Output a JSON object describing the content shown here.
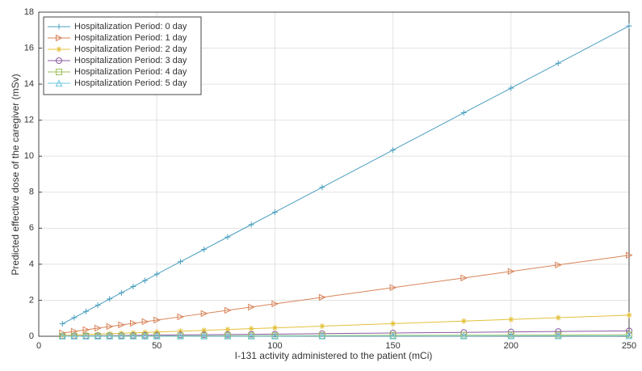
{
  "chart_data": {
    "type": "line",
    "xlabel": "I-131 activity administered to the patient (mCi)",
    "ylabel": "Predicted effective dose of the caregiver (mSv)",
    "x": [
      10,
      15,
      20,
      25,
      30,
      35,
      40,
      45,
      50,
      60,
      70,
      80,
      90,
      100,
      120,
      150,
      180,
      200,
      220,
      250
    ],
    "series": [
      {
        "name": "Hospitalization Period: 0 day",
        "color": "#4a9fbf",
        "marker": "plus",
        "values": [
          0.69,
          1.03,
          1.38,
          1.72,
          2.07,
          2.41,
          2.76,
          3.1,
          3.45,
          4.14,
          4.82,
          5.51,
          6.2,
          6.89,
          8.27,
          10.34,
          12.41,
          13.78,
          15.16,
          17.23
        ]
      },
      {
        "name": "Hospitalization Period: 1 day",
        "color": "#d9845a",
        "marker": "triangle-right",
        "values": [
          0.18,
          0.27,
          0.36,
          0.45,
          0.54,
          0.63,
          0.72,
          0.81,
          0.9,
          1.08,
          1.26,
          1.44,
          1.62,
          1.8,
          2.16,
          2.7,
          3.24,
          3.6,
          3.96,
          4.5
        ]
      },
      {
        "name": "Hospitalization Period: 2 day",
        "color": "#e3c03a",
        "marker": "star",
        "values": [
          0.047,
          0.07,
          0.094,
          0.117,
          0.14,
          0.164,
          0.187,
          0.211,
          0.234,
          0.281,
          0.328,
          0.374,
          0.421,
          0.468,
          0.562,
          0.702,
          0.842,
          0.936,
          1.03,
          1.17
        ]
      },
      {
        "name": "Hospitalization Period: 3 day",
        "color": "#8a5aa0",
        "marker": "circle",
        "values": [
          0.012,
          0.018,
          0.024,
          0.03,
          0.036,
          0.042,
          0.048,
          0.054,
          0.06,
          0.072,
          0.084,
          0.096,
          0.108,
          0.12,
          0.144,
          0.18,
          0.216,
          0.24,
          0.264,
          0.3
        ]
      },
      {
        "name": "Hospitalization Period: 4 day",
        "color": "#9cbf5a",
        "marker": "square",
        "values": [
          0.003,
          0.005,
          0.006,
          0.008,
          0.01,
          0.011,
          0.013,
          0.014,
          0.016,
          0.019,
          0.022,
          0.026,
          0.029,
          0.032,
          0.038,
          0.048,
          0.058,
          0.064,
          0.07,
          0.08
        ]
      },
      {
        "name": "Hospitalization Period: 5 day",
        "color": "#6cc8e0",
        "marker": "triangle-up",
        "values": [
          0.001,
          0.001,
          0.002,
          0.002,
          0.002,
          0.003,
          0.003,
          0.004,
          0.004,
          0.005,
          0.006,
          0.006,
          0.007,
          0.008,
          0.01,
          0.012,
          0.014,
          0.016,
          0.018,
          0.02
        ]
      }
    ],
    "xlim": [
      0,
      250
    ],
    "xticks": [
      0,
      50,
      100,
      150,
      200,
      250
    ],
    "ylim": [
      0,
      18
    ],
    "yticks": [
      0,
      2,
      4,
      6,
      8,
      10,
      12,
      14,
      16,
      18
    ],
    "grid": true,
    "legend": "upper-left"
  }
}
